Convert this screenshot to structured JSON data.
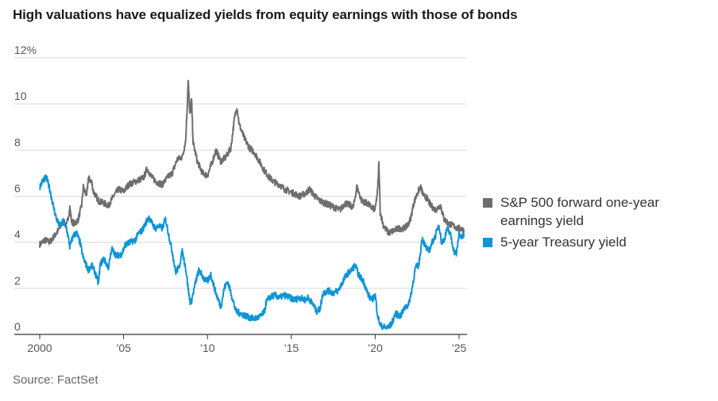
{
  "title": "High valuations have equalized yields from equity earnings with those of bonds",
  "source": "Source: FactSet",
  "chart_data": {
    "type": "line",
    "title": "High valuations have equalized yields from equity earnings with those of bonds",
    "xlabel": "",
    "ylabel": "",
    "xlim": [
      2000,
      2025.4
    ],
    "ylim": [
      0,
      12
    ],
    "y_ticks": [
      {
        "value": 12,
        "label": "12%"
      },
      {
        "value": 10,
        "label": "10"
      },
      {
        "value": 8,
        "label": "8"
      },
      {
        "value": 6,
        "label": "6"
      },
      {
        "value": 4,
        "label": "4"
      },
      {
        "value": 2,
        "label": "2"
      },
      {
        "value": 0,
        "label": "0"
      }
    ],
    "x_ticks": [
      {
        "value": 2000,
        "label": "2000"
      },
      {
        "value": 2005,
        "label": "’05"
      },
      {
        "value": 2010,
        "label": "’10"
      },
      {
        "value": 2015,
        "label": "’15"
      },
      {
        "value": 2020,
        "label": "’20"
      },
      {
        "value": 2025,
        "label": "’25"
      }
    ],
    "grid": true,
    "legend_position": "right",
    "series": [
      {
        "name": "S&P 500 forward one-year earnings yield",
        "color": "#6e6e6e",
        "points": [
          [
            2000.0,
            3.9
          ],
          [
            2000.3,
            4.1
          ],
          [
            2000.6,
            4.0
          ],
          [
            2000.9,
            4.3
          ],
          [
            2001.1,
            4.5
          ],
          [
            2001.4,
            4.9
          ],
          [
            2001.6,
            4.7
          ],
          [
            2001.8,
            5.5
          ],
          [
            2001.9,
            4.9
          ],
          [
            2002.1,
            4.8
          ],
          [
            2002.3,
            5.0
          ],
          [
            2002.5,
            5.6
          ],
          [
            2002.6,
            6.4
          ],
          [
            2002.8,
            6.0
          ],
          [
            2002.9,
            6.8
          ],
          [
            2003.1,
            6.6
          ],
          [
            2003.2,
            6.2
          ],
          [
            2003.5,
            5.8
          ],
          [
            2003.8,
            5.7
          ],
          [
            2004.1,
            5.6
          ],
          [
            2004.4,
            6.0
          ],
          [
            2004.7,
            6.3
          ],
          [
            2005.0,
            6.2
          ],
          [
            2005.3,
            6.5
          ],
          [
            2005.6,
            6.6
          ],
          [
            2005.9,
            6.7
          ],
          [
            2006.2,
            6.8
          ],
          [
            2006.4,
            7.2
          ],
          [
            2006.7,
            6.8
          ],
          [
            2007.0,
            6.6
          ],
          [
            2007.3,
            6.5
          ],
          [
            2007.6,
            6.8
          ],
          [
            2007.9,
            7.0
          ],
          [
            2008.2,
            7.6
          ],
          [
            2008.5,
            7.7
          ],
          [
            2008.7,
            8.4
          ],
          [
            2008.8,
            10.0
          ],
          [
            2008.85,
            11.1
          ],
          [
            2008.95,
            9.5
          ],
          [
            2009.05,
            10.2
          ],
          [
            2009.15,
            8.3
          ],
          [
            2009.4,
            7.5
          ],
          [
            2009.7,
            7.0
          ],
          [
            2010.0,
            6.9
          ],
          [
            2010.3,
            7.5
          ],
          [
            2010.5,
            8.0
          ],
          [
            2010.8,
            7.5
          ],
          [
            2011.1,
            7.7
          ],
          [
            2011.4,
            8.1
          ],
          [
            2011.6,
            9.3
          ],
          [
            2011.75,
            9.9
          ],
          [
            2011.9,
            9.1
          ],
          [
            2012.2,
            8.5
          ],
          [
            2012.5,
            8.1
          ],
          [
            2012.8,
            7.9
          ],
          [
            2013.1,
            7.5
          ],
          [
            2013.4,
            7.1
          ],
          [
            2013.7,
            6.8
          ],
          [
            2014.0,
            6.6
          ],
          [
            2014.3,
            6.5
          ],
          [
            2014.6,
            6.3
          ],
          [
            2014.9,
            6.2
          ],
          [
            2015.2,
            6.1
          ],
          [
            2015.5,
            6.0
          ],
          [
            2015.8,
            6.1
          ],
          [
            2016.1,
            6.3
          ],
          [
            2016.4,
            6.0
          ],
          [
            2016.7,
            5.8
          ],
          [
            2017.0,
            5.7
          ],
          [
            2017.3,
            5.6
          ],
          [
            2017.6,
            5.5
          ],
          [
            2017.9,
            5.4
          ],
          [
            2018.2,
            5.7
          ],
          [
            2018.5,
            5.6
          ],
          [
            2018.7,
            5.5
          ],
          [
            2018.9,
            6.4
          ],
          [
            2019.0,
            6.2
          ],
          [
            2019.2,
            5.8
          ],
          [
            2019.5,
            5.7
          ],
          [
            2019.8,
            5.5
          ],
          [
            2020.0,
            5.4
          ],
          [
            2020.15,
            6.3
          ],
          [
            2020.22,
            7.4
          ],
          [
            2020.3,
            5.3
          ],
          [
            2020.5,
            4.7
          ],
          [
            2020.8,
            4.4
          ],
          [
            2021.1,
            4.5
          ],
          [
            2021.4,
            4.6
          ],
          [
            2021.7,
            4.6
          ],
          [
            2021.9,
            4.7
          ],
          [
            2022.1,
            5.0
          ],
          [
            2022.3,
            5.7
          ],
          [
            2022.5,
            6.1
          ],
          [
            2022.7,
            6.4
          ],
          [
            2022.9,
            6.0
          ],
          [
            2023.1,
            5.9
          ],
          [
            2023.3,
            5.6
          ],
          [
            2023.6,
            5.4
          ],
          [
            2023.9,
            5.6
          ],
          [
            2024.1,
            5.0
          ],
          [
            2024.4,
            4.8
          ],
          [
            2024.7,
            4.7
          ],
          [
            2024.9,
            4.6
          ],
          [
            2025.1,
            4.6
          ],
          [
            2025.3,
            4.5
          ]
        ]
      },
      {
        "name": "5-year Treasury yield",
        "color": "#0f95d6",
        "points": [
          [
            2000.0,
            6.4
          ],
          [
            2000.2,
            6.7
          ],
          [
            2000.4,
            6.8
          ],
          [
            2000.6,
            6.3
          ],
          [
            2000.8,
            5.6
          ],
          [
            2001.0,
            5.0
          ],
          [
            2001.2,
            4.7
          ],
          [
            2001.4,
            4.9
          ],
          [
            2001.6,
            4.6
          ],
          [
            2001.8,
            3.8
          ],
          [
            2002.0,
            4.3
          ],
          [
            2002.2,
            4.4
          ],
          [
            2002.4,
            4.0
          ],
          [
            2002.6,
            3.3
          ],
          [
            2002.9,
            2.8
          ],
          [
            2003.1,
            3.0
          ],
          [
            2003.3,
            2.7
          ],
          [
            2003.5,
            2.2
          ],
          [
            2003.6,
            3.0
          ],
          [
            2003.8,
            3.3
          ],
          [
            2004.1,
            2.9
          ],
          [
            2004.3,
            3.7
          ],
          [
            2004.6,
            3.4
          ],
          [
            2004.9,
            3.5
          ],
          [
            2005.1,
            3.9
          ],
          [
            2005.4,
            4.0
          ],
          [
            2005.7,
            4.1
          ],
          [
            2005.9,
            4.4
          ],
          [
            2006.1,
            4.5
          ],
          [
            2006.3,
            4.8
          ],
          [
            2006.5,
            5.1
          ],
          [
            2006.7,
            4.8
          ],
          [
            2006.9,
            4.6
          ],
          [
            2007.1,
            4.7
          ],
          [
            2007.3,
            4.6
          ],
          [
            2007.5,
            5.0
          ],
          [
            2007.7,
            4.3
          ],
          [
            2007.9,
            3.6
          ],
          [
            2008.1,
            2.7
          ],
          [
            2008.3,
            2.9
          ],
          [
            2008.5,
            3.6
          ],
          [
            2008.7,
            2.9
          ],
          [
            2008.9,
            1.7
          ],
          [
            2009.0,
            1.3
          ],
          [
            2009.3,
            2.3
          ],
          [
            2009.5,
            2.8
          ],
          [
            2009.8,
            2.4
          ],
          [
            2010.0,
            2.3
          ],
          [
            2010.2,
            2.6
          ],
          [
            2010.5,
            1.8
          ],
          [
            2010.8,
            1.2
          ],
          [
            2011.0,
            2.0
          ],
          [
            2011.2,
            2.3
          ],
          [
            2011.4,
            1.8
          ],
          [
            2011.7,
            1.0
          ],
          [
            2012.0,
            0.9
          ],
          [
            2012.3,
            0.8
          ],
          [
            2012.6,
            0.7
          ],
          [
            2012.9,
            0.7
          ],
          [
            2013.2,
            0.8
          ],
          [
            2013.4,
            1.0
          ],
          [
            2013.5,
            1.4
          ],
          [
            2013.7,
            1.6
          ],
          [
            2014.0,
            1.7
          ],
          [
            2014.3,
            1.6
          ],
          [
            2014.6,
            1.7
          ],
          [
            2014.9,
            1.6
          ],
          [
            2015.2,
            1.5
          ],
          [
            2015.5,
            1.6
          ],
          [
            2015.8,
            1.5
          ],
          [
            2016.0,
            1.6
          ],
          [
            2016.3,
            1.3
          ],
          [
            2016.5,
            1.0
          ],
          [
            2016.7,
            1.1
          ],
          [
            2016.9,
            1.8
          ],
          [
            2017.2,
            1.9
          ],
          [
            2017.5,
            1.8
          ],
          [
            2017.8,
            1.9
          ],
          [
            2018.0,
            2.2
          ],
          [
            2018.3,
            2.6
          ],
          [
            2018.6,
            2.8
          ],
          [
            2018.8,
            3.0
          ],
          [
            2019.0,
            2.6
          ],
          [
            2019.3,
            2.3
          ],
          [
            2019.6,
            1.7
          ],
          [
            2019.8,
            1.5
          ],
          [
            2020.0,
            1.7
          ],
          [
            2020.15,
            0.8
          ],
          [
            2020.3,
            0.4
          ],
          [
            2020.6,
            0.3
          ],
          [
            2020.8,
            0.3
          ],
          [
            2021.0,
            0.5
          ],
          [
            2021.2,
            0.9
          ],
          [
            2021.5,
            0.8
          ],
          [
            2021.8,
            1.2
          ],
          [
            2022.0,
            1.3
          ],
          [
            2022.2,
            2.0
          ],
          [
            2022.4,
            2.9
          ],
          [
            2022.6,
            3.0
          ],
          [
            2022.8,
            4.2
          ],
          [
            2023.0,
            3.8
          ],
          [
            2023.2,
            3.6
          ],
          [
            2023.4,
            4.0
          ],
          [
            2023.6,
            4.3
          ],
          [
            2023.8,
            4.8
          ],
          [
            2023.95,
            4.0
          ],
          [
            2024.1,
            4.1
          ],
          [
            2024.3,
            4.6
          ],
          [
            2024.5,
            4.3
          ],
          [
            2024.7,
            3.6
          ],
          [
            2024.85,
            3.5
          ],
          [
            2025.0,
            4.4
          ],
          [
            2025.15,
            4.2
          ],
          [
            2025.3,
            4.3
          ]
        ]
      }
    ]
  }
}
